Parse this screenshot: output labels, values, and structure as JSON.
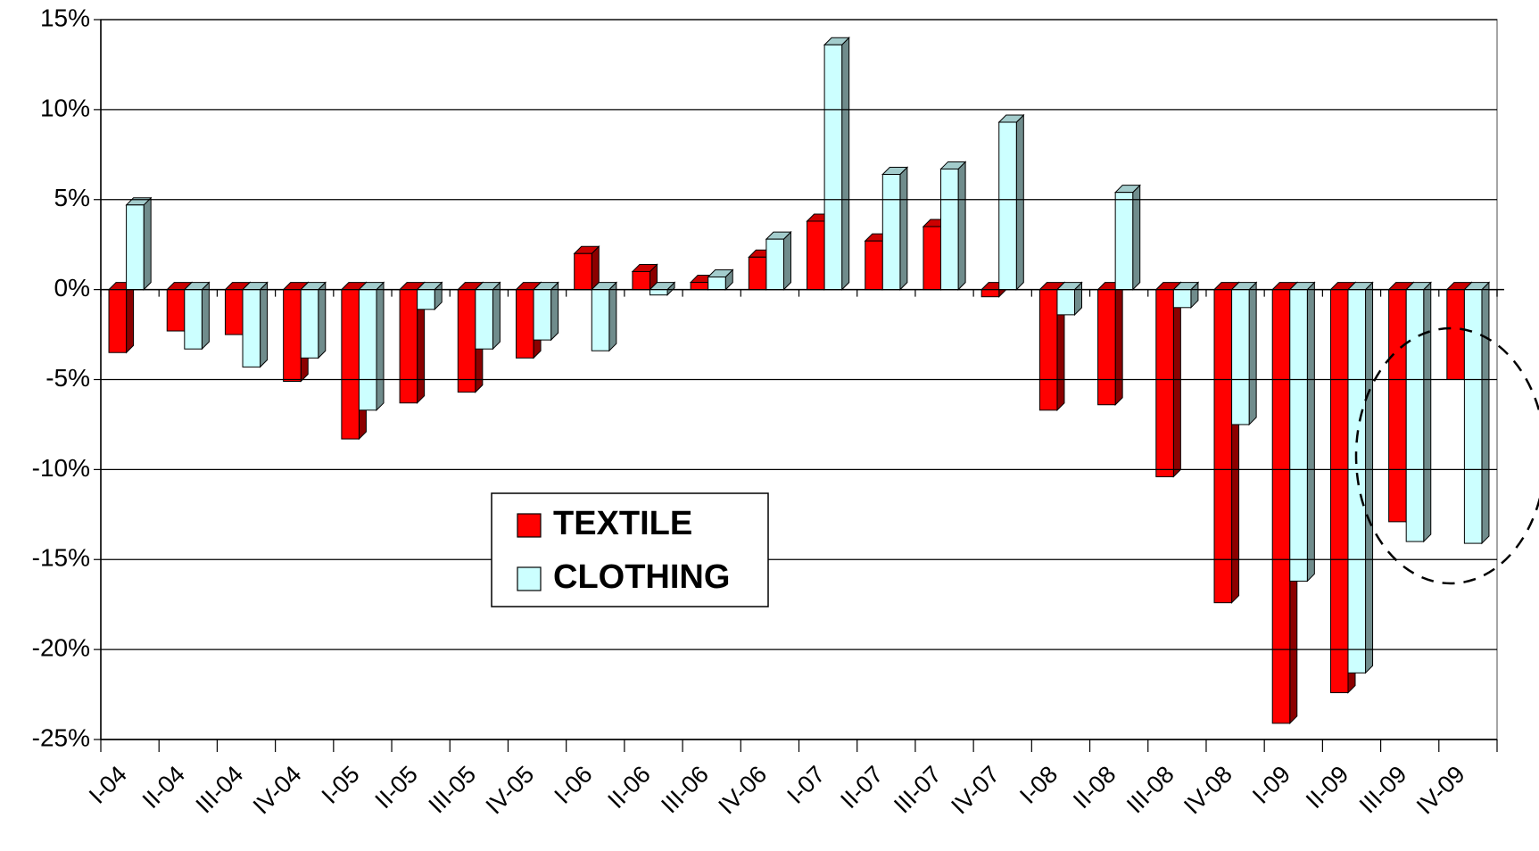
{
  "chart_data": {
    "type": "bar",
    "categories": [
      "I-04",
      "II-04",
      "III-04",
      "IV-04",
      "I-05",
      "II-05",
      "III-05",
      "IV-05",
      "I-06",
      "II-06",
      "III-06",
      "IV-06",
      "I-07",
      "II-07",
      "III-07",
      "IV-07",
      "I-08",
      "II-08",
      "III-08",
      "IV-08",
      "I-09",
      "II-09",
      "III-09",
      "IV-09"
    ],
    "series": [
      {
        "name": "TEXTILE",
        "color": "#ff0000",
        "values": [
          -3.5,
          -2.3,
          -2.5,
          -5.1,
          -8.3,
          -6.3,
          -5.7,
          -3.8,
          2.0,
          1.0,
          0.4,
          1.8,
          3.8,
          2.7,
          3.5,
          -0.4,
          -6.7,
          -6.4,
          -10.4,
          -17.4,
          -24.1,
          -22.4,
          -12.9,
          -5.0
        ]
      },
      {
        "name": "CLOTHING",
        "color": "#ccffff",
        "values": [
          4.7,
          -3.3,
          -4.3,
          -3.8,
          -6.7,
          -1.1,
          -3.3,
          -2.8,
          -3.4,
          -0.3,
          0.7,
          2.8,
          13.6,
          6.4,
          6.7,
          9.3,
          -1.4,
          5.4,
          -1.0,
          -7.5,
          -16.2,
          -21.3,
          -14.0,
          -14.1
        ]
      }
    ],
    "ylim": [
      -25,
      15
    ],
    "yticks": [
      {
        "value": -25,
        "label": "-25%"
      },
      {
        "value": -20,
        "label": "-20%"
      },
      {
        "value": -15,
        "label": "-15%"
      },
      {
        "value": -10,
        "label": "-10%"
      },
      {
        "value": -5,
        "label": "-5%"
      },
      {
        "value": 0,
        "label": "0%"
      },
      {
        "value": 5,
        "label": "5%"
      },
      {
        "value": 10,
        "label": "10%"
      },
      {
        "value": 15,
        "label": "15%"
      }
    ],
    "grid": true
  }
}
